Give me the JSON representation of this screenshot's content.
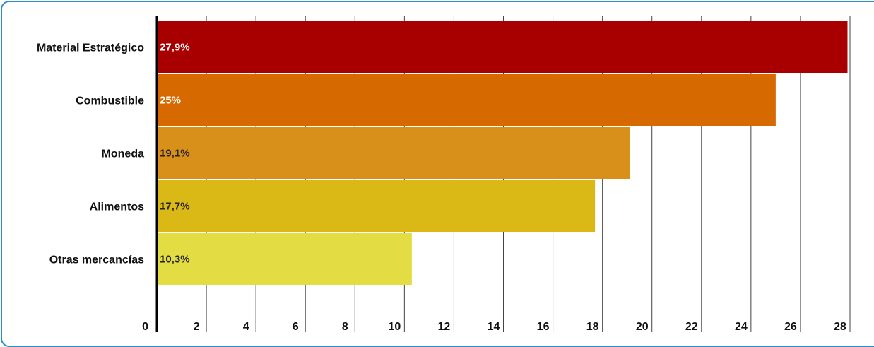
{
  "chart_data": {
    "type": "bar",
    "orientation": "horizontal",
    "categories": [
      "Material Estratégico",
      "Combustible",
      "Moneda",
      "Alimentos",
      "Otras mercancías"
    ],
    "values": [
      27.9,
      25,
      19.1,
      17.7,
      10.3
    ],
    "value_labels": [
      "27,9%",
      "25%",
      "19,1%",
      "17,7%",
      "10,3%"
    ],
    "colors": [
      "#a80000",
      "#d66a00",
      "#d8901a",
      "#dab816",
      "#e3dc42"
    ],
    "value_label_colors": [
      "#ffffff",
      "#ffffff",
      "#222222",
      "#222222",
      "#222222"
    ],
    "xlim": [
      0,
      28
    ],
    "x_ticks": [
      0,
      2,
      4,
      6,
      8,
      10,
      12,
      14,
      16,
      18,
      20,
      22,
      24,
      26,
      28
    ],
    "grid": true,
    "frame_color": "#2c8fc0"
  }
}
